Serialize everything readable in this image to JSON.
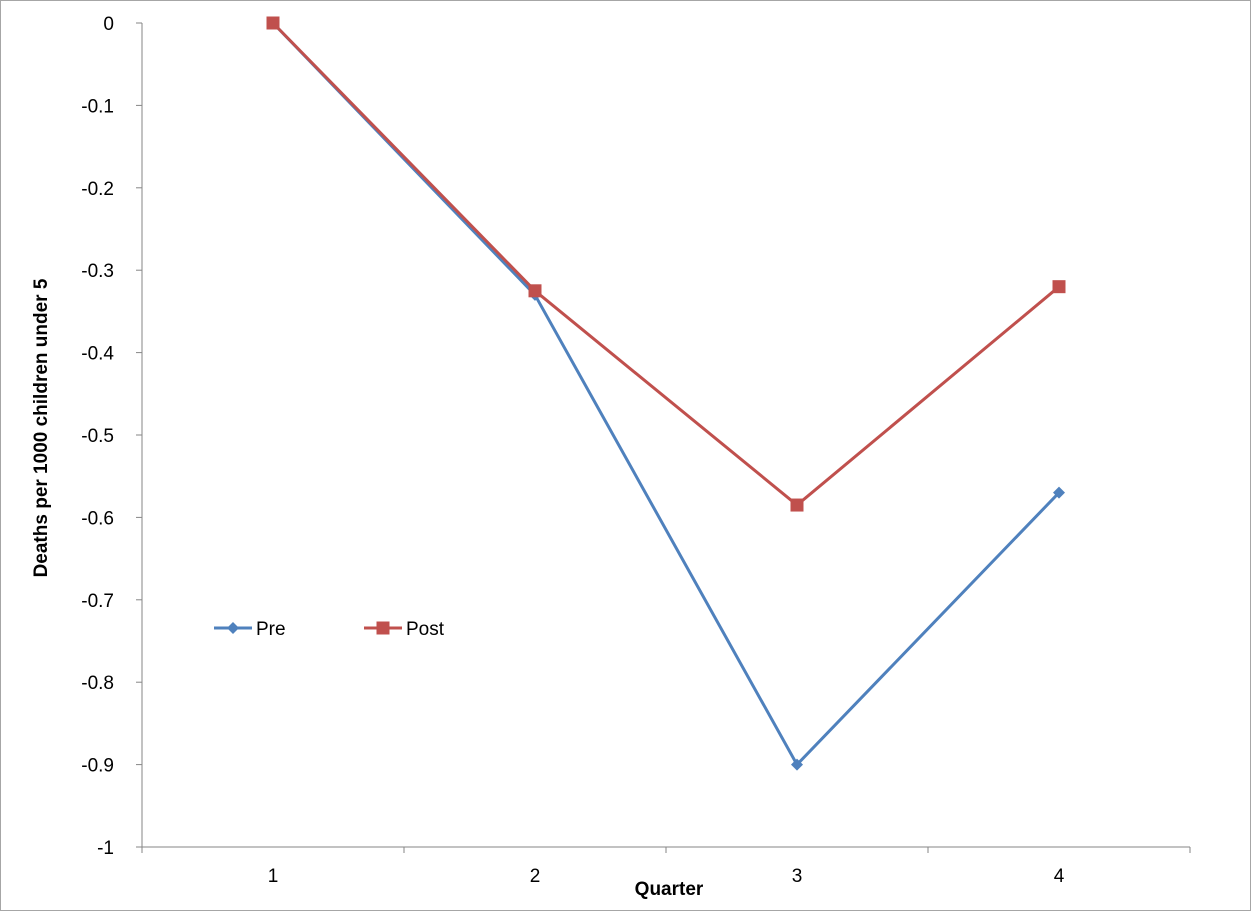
{
  "chart_data": {
    "type": "line",
    "title": "",
    "xlabel": "Quarter",
    "ylabel": "Deaths per 1000 children under 5",
    "categories": [
      "1",
      "2",
      "3",
      "4"
    ],
    "x": [
      1,
      2,
      3,
      4
    ],
    "ylim": [
      -1,
      0
    ],
    "yticks": [
      0,
      -0.1,
      -0.2,
      -0.3,
      -0.4,
      -0.5,
      -0.6,
      -0.7,
      -0.8,
      -0.9,
      -1
    ],
    "ytick_labels": [
      "0",
      "-0.1",
      "-0.2",
      "-0.3",
      "-0.4",
      "-0.5",
      "-0.6",
      "-0.7",
      "-0.8",
      "-0.9",
      "-1"
    ],
    "grid": false,
    "legend_position": "left-center",
    "series": [
      {
        "name": "Pre",
        "values": [
          0,
          -0.33,
          -0.9,
          -0.57
        ],
        "color": "#4f81bd",
        "marker": "diamond"
      },
      {
        "name": "Post",
        "values": [
          0,
          -0.325,
          -0.585,
          -0.32
        ],
        "color": "#c0504d",
        "marker": "square"
      }
    ]
  }
}
